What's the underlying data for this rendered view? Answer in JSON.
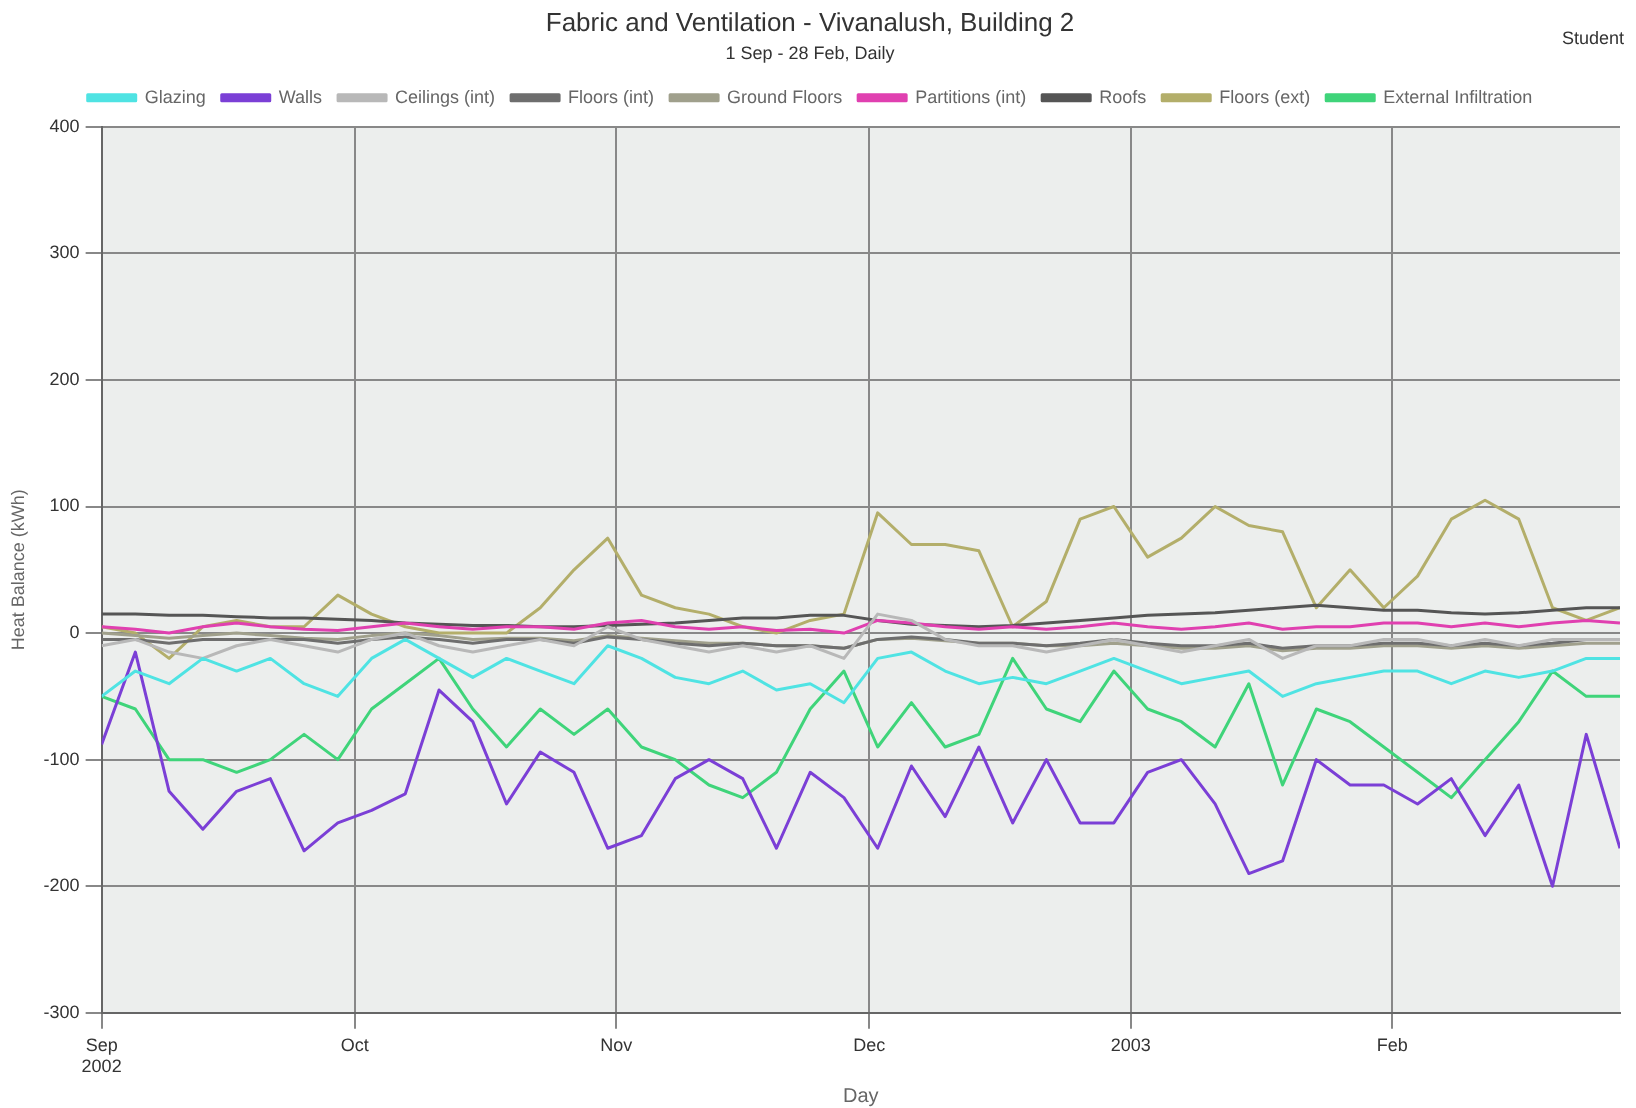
{
  "chart_data": {
    "type": "line",
    "title": "Fabric and Ventilation - Vivanalush, Building 2",
    "subtitle": "1 Sep - 28 Feb, Daily",
    "xlabel": "Day",
    "ylabel": "Heat Balance (kWh)",
    "annotations": [
      "Student"
    ],
    "x": [
      "2002-09-01",
      "2002-09-05",
      "2002-09-09",
      "2002-09-13",
      "2002-09-17",
      "2002-09-21",
      "2002-09-25",
      "2002-09-29",
      "2002-10-03",
      "2002-10-07",
      "2002-10-11",
      "2002-10-15",
      "2002-10-19",
      "2002-10-23",
      "2002-10-27",
      "2002-10-31",
      "2002-11-04",
      "2002-11-08",
      "2002-11-12",
      "2002-11-16",
      "2002-11-20",
      "2002-11-24",
      "2002-11-28",
      "2002-12-02",
      "2002-12-06",
      "2002-12-10",
      "2002-12-14",
      "2002-12-18",
      "2002-12-22",
      "2002-12-26",
      "2002-12-30",
      "2003-01-03",
      "2003-01-07",
      "2003-01-11",
      "2003-01-15",
      "2003-01-19",
      "2003-01-23",
      "2003-01-27",
      "2003-01-31",
      "2003-02-04",
      "2003-02-08",
      "2003-02-12",
      "2003-02-16",
      "2003-02-20",
      "2003-02-24",
      "2003-02-28"
    ],
    "series": [
      {
        "name": "Glazing",
        "color": "#4fe3e3",
        "values": [
          -50,
          -30,
          -40,
          -20,
          -30,
          -20,
          -40,
          -50,
          -20,
          -5,
          -20,
          -35,
          -20,
          -30,
          -40,
          -10,
          -20,
          -35,
          -40,
          -30,
          -45,
          -40,
          -55,
          -20,
          -15,
          -30,
          -40,
          -35,
          -40,
          -30,
          -20,
          -30,
          -40,
          -35,
          -30,
          -50,
          -40,
          -35,
          -30,
          -30,
          -40,
          -30,
          -35,
          -30,
          -20,
          -20
        ]
      },
      {
        "name": "Walls",
        "color": "#7b3fd6",
        "values": [
          -88,
          -15,
          -125,
          -155,
          -125,
          -115,
          -172,
          -150,
          -140,
          -127,
          -45,
          -70,
          -135,
          -94,
          -110,
          -170,
          -160,
          -115,
          -100,
          -115,
          -170,
          -110,
          -130,
          -170,
          -105,
          -145,
          -90,
          -150,
          -100,
          -150,
          -150,
          -110,
          -100,
          -135,
          -190,
          -180,
          -100,
          -120,
          -120,
          -135,
          -115,
          -160,
          -120,
          -200,
          -80,
          -170
        ]
      },
      {
        "name": "Ceilings (int)",
        "color": "#b8b8b8",
        "values": [
          -10,
          -5,
          -15,
          -20,
          -10,
          -5,
          -10,
          -15,
          -5,
          0,
          -10,
          -15,
          -10,
          -5,
          -10,
          5,
          -5,
          -10,
          -15,
          -10,
          -15,
          -10,
          -20,
          15,
          10,
          -5,
          -10,
          -10,
          -15,
          -10,
          -5,
          -10,
          -15,
          -10,
          -5,
          -20,
          -10,
          -10,
          -5,
          -5,
          -10,
          -5,
          -10,
          -5,
          -5,
          -5
        ]
      },
      {
        "name": "Floors (int)",
        "color": "#6e6e6e",
        "values": [
          -5,
          -5,
          -8,
          -5,
          -5,
          -5,
          -5,
          -8,
          -5,
          -3,
          -5,
          -8,
          -5,
          -5,
          -8,
          -3,
          -5,
          -8,
          -10,
          -8,
          -10,
          -10,
          -12,
          -5,
          -3,
          -5,
          -8,
          -8,
          -10,
          -8,
          -5,
          -8,
          -10,
          -10,
          -8,
          -12,
          -10,
          -10,
          -8,
          -8,
          -10,
          -8,
          -10,
          -8,
          -5,
          -5
        ]
      },
      {
        "name": "Ground Floors",
        "color": "#a0a08c",
        "values": [
          0,
          -2,
          -4,
          -2,
          0,
          -2,
          -4,
          -5,
          -2,
          0,
          -2,
          -5,
          -4,
          -4,
          -6,
          -2,
          -4,
          -6,
          -8,
          -8,
          -10,
          -10,
          -12,
          -5,
          -4,
          -6,
          -8,
          -8,
          -10,
          -10,
          -8,
          -10,
          -12,
          -12,
          -10,
          -14,
          -12,
          -12,
          -10,
          -10,
          -12,
          -10,
          -12,
          -10,
          -8,
          -8
        ]
      },
      {
        "name": "Partitions (int)",
        "color": "#e040b0",
        "values": [
          5,
          3,
          0,
          5,
          8,
          5,
          3,
          2,
          5,
          8,
          5,
          3,
          5,
          5,
          3,
          8,
          10,
          5,
          3,
          5,
          2,
          3,
          0,
          10,
          8,
          5,
          3,
          5,
          3,
          5,
          8,
          5,
          3,
          5,
          8,
          3,
          5,
          5,
          8,
          8,
          5,
          8,
          5,
          8,
          10,
          8
        ]
      },
      {
        "name": "Roofs",
        "color": "#555555",
        "values": [
          15,
          15,
          14,
          14,
          13,
          12,
          12,
          11,
          10,
          8,
          7,
          6,
          6,
          5,
          5,
          6,
          7,
          8,
          10,
          12,
          12,
          14,
          14,
          10,
          7,
          6,
          5,
          6,
          8,
          10,
          12,
          14,
          15,
          16,
          18,
          20,
          22,
          20,
          18,
          18,
          16,
          15,
          16,
          18,
          20,
          20
        ]
      },
      {
        "name": "Floors (ext)",
        "color": "#b3ae6a",
        "values": [
          5,
          0,
          -20,
          5,
          10,
          5,
          5,
          30,
          15,
          5,
          0,
          0,
          0,
          20,
          50,
          75,
          30,
          20,
          15,
          5,
          0,
          10,
          15,
          95,
          70,
          70,
          65,
          5,
          25,
          90,
          100,
          60,
          75,
          100,
          85,
          80,
          20,
          50,
          20,
          45,
          90,
          105,
          90,
          20,
          10,
          20
        ]
      },
      {
        "name": "External Infiltration",
        "color": "#3fd47a",
        "values": [
          -50,
          -60,
          -100,
          -100,
          -110,
          -100,
          -80,
          -100,
          -60,
          -40,
          -20,
          -60,
          -90,
          -60,
          -80,
          -60,
          -90,
          -100,
          -120,
          -130,
          -110,
          -60,
          -30,
          -90,
          -55,
          -90,
          -80,
          -20,
          -60,
          -70,
          -30,
          -60,
          -70,
          -90,
          -40,
          -120,
          -60,
          -70,
          -90,
          -110,
          -130,
          -100,
          -70,
          -30,
          -50,
          -50
        ]
      }
    ],
    "xlim": [
      "2002-09-01",
      "2003-02-28"
    ],
    "xticks": [
      {
        "value": "2002-09-01",
        "label": "Sep\n2002"
      },
      {
        "value": "2002-10-01",
        "label": "Oct"
      },
      {
        "value": "2002-11-01",
        "label": "Nov"
      },
      {
        "value": "2002-12-01",
        "label": "Dec"
      },
      {
        "value": "2003-01-01",
        "label": "2003"
      },
      {
        "value": "2003-02-01",
        "label": "Feb"
      }
    ],
    "ylim": [
      -300,
      400
    ],
    "yticks": [
      -300,
      -200,
      -100,
      0,
      100,
      200,
      300,
      400
    ],
    "grid": true,
    "legend": "top",
    "marker": "none",
    "line_style": "solid"
  }
}
